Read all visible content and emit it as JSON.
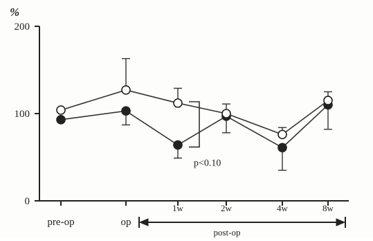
{
  "chart_data": {
    "type": "line",
    "title": "",
    "ylabel": "%",
    "xlabel": "",
    "ylim": [
      0,
      200
    ],
    "yticks": [
      0,
      100,
      200
    ],
    "categories": [
      "pre-op",
      "op",
      "1w",
      "2w",
      "4w",
      "8w"
    ],
    "x_group_label": "post-op",
    "grid": false,
    "legend": "none",
    "series": [
      {
        "marker": "open-circle",
        "values": [
          104,
          127,
          112,
          100,
          76,
          115
        ],
        "error_upper": [
          null,
          163,
          129,
          111,
          84,
          125
        ],
        "error_lower": [
          null,
          null,
          null,
          null,
          null,
          null
        ]
      },
      {
        "marker": "filled-circle",
        "values": [
          93,
          103,
          64,
          97,
          61,
          110
        ],
        "error_upper": [
          null,
          null,
          null,
          null,
          null,
          null
        ],
        "error_lower": [
          null,
          87,
          49,
          78,
          35,
          82
        ]
      }
    ],
    "annotations": [
      {
        "text": "p<0.10",
        "between_series_at": "1w"
      }
    ]
  },
  "style": {
    "axis_color": "#222222",
    "line_color": "#333333",
    "open_marker_fill": "#ffffff",
    "filled_marker_fill": "#222222"
  }
}
